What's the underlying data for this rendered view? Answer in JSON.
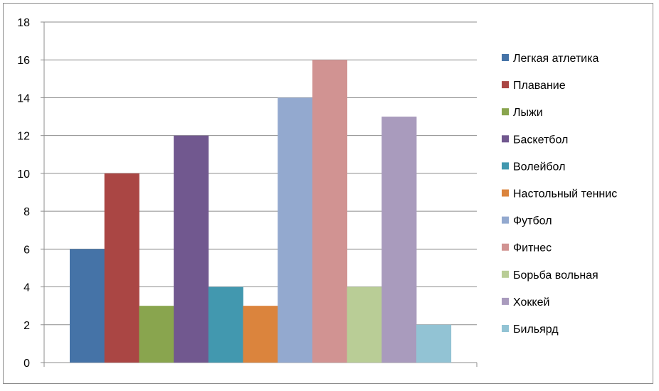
{
  "chart_data": {
    "type": "bar",
    "title": "",
    "xlabel": "",
    "ylabel": "",
    "ylim": [
      0,
      18
    ],
    "yticks": [
      0,
      2,
      4,
      6,
      8,
      10,
      12,
      14,
      16,
      18
    ],
    "grid": true,
    "legend_position": "right",
    "series": [
      {
        "name": "Легкая атлетика",
        "value": 6,
        "color": "#4573a7"
      },
      {
        "name": "Плавание",
        "value": 10,
        "color": "#aa4644"
      },
      {
        "name": "Лыжи",
        "value": 3,
        "color": "#89a54e"
      },
      {
        "name": "Баскетбол",
        "value": 12,
        "color": "#71588f"
      },
      {
        "name": "Волейбол",
        "value": 4,
        "color": "#4298af"
      },
      {
        "name": "Настольный теннис",
        "value": 3,
        "color": "#db843d"
      },
      {
        "name": "Футбол",
        "value": 14,
        "color": "#93a9cf"
      },
      {
        "name": "Фитнес",
        "value": 16,
        "color": "#d19392"
      },
      {
        "name": "Борьба вольная",
        "value": 4,
        "color": "#b9cd96"
      },
      {
        "name": "Хоккей",
        "value": 13,
        "color": "#a99bbd"
      },
      {
        "name": "Бильярд",
        "value": 2,
        "color": "#92c3d4"
      }
    ]
  }
}
